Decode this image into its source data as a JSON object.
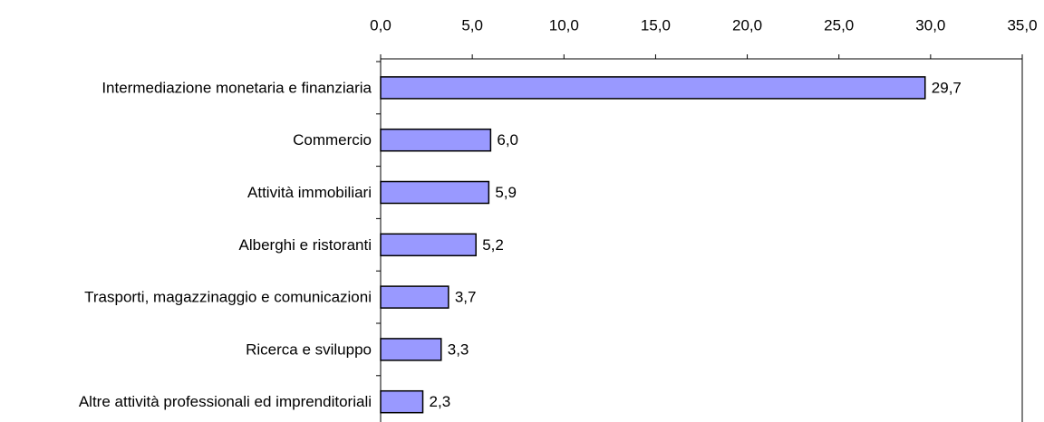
{
  "chart_data": {
    "type": "bar",
    "orientation": "horizontal",
    "categories": [
      "Intermediazione monetaria e finanziaria",
      "Commercio",
      "Attività immobiliari",
      "Alberghi e ristoranti",
      "Trasporti, magazzinaggio e comunicazioni",
      "Ricerca e sviluppo",
      "Altre attività professionali ed imprenditoriali"
    ],
    "values": [
      29.7,
      6.0,
      5.9,
      5.2,
      3.7,
      3.3,
      2.3
    ],
    "value_labels": [
      "29,7",
      "6,0",
      "5,9",
      "5,2",
      "3,7",
      "3,3",
      "2,3"
    ],
    "color": "#9999ff",
    "xlim": [
      0,
      35
    ],
    "xticks": [
      {
        "value": 0,
        "label": "0,0"
      },
      {
        "value": 5,
        "label": "5,0"
      },
      {
        "value": 10,
        "label": "10,0"
      },
      {
        "value": 15,
        "label": "15,0"
      },
      {
        "value": 20,
        "label": "20,0"
      },
      {
        "value": 25,
        "label": "25,0"
      },
      {
        "value": 30,
        "label": "30,0"
      },
      {
        "value": 35,
        "label": "35,0"
      }
    ],
    "grid": false
  }
}
